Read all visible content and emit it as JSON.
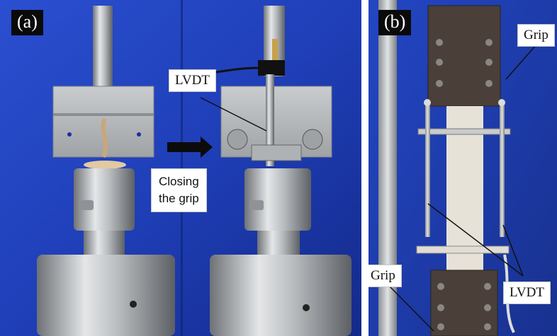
{
  "panels": {
    "a": {
      "tag": "(a)"
    },
    "b": {
      "tag": "(b)"
    }
  },
  "labels": {
    "lvdt_a": "LVDT",
    "closing_line1": "Closing",
    "closing_line2": "the grip",
    "grip_top": "Grip",
    "grip_bottom": "Grip",
    "lvdt_b": "LVDT"
  },
  "colors": {
    "backdrop_blue": "#1f3fb8",
    "steel": "#b9bcc0",
    "grip_plate": "#4a3f39",
    "specimen": "#e6e2d8",
    "label_tag": "#0a0a0a"
  }
}
